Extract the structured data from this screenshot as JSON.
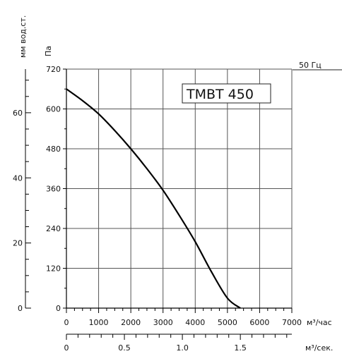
{
  "chart_data": {
    "type": "line",
    "model_label": "ТМВТ 450",
    "frequency_label": "50 Гц",
    "axes": {
      "y_pa": {
        "label": "Па",
        "ticks": [
          0,
          120,
          240,
          360,
          480,
          600,
          720
        ],
        "range": [
          0,
          720
        ]
      },
      "y_mm": {
        "label": "мм вод.ст.",
        "ticks": [
          0,
          20,
          40,
          60
        ],
        "range": [
          0,
          73.4
        ]
      },
      "x_m3h": {
        "label": "м³/час",
        "ticks": [
          0,
          1000,
          2000,
          3000,
          4000,
          5000,
          6000,
          7000
        ],
        "range": [
          0,
          7000
        ]
      },
      "x_m3s": {
        "label": "м³/сек.",
        "ticks": [
          0,
          0.5,
          1.0,
          1.5
        ],
        "tick_labels": [
          "0",
          "0.5",
          "1.0",
          "1.5"
        ],
        "range": [
          0,
          1.944
        ]
      }
    },
    "grid": true,
    "series": [
      {
        "x": [
          0,
          500,
          1000,
          1500,
          2000,
          2500,
          3000,
          3500,
          4000,
          4500,
          5000,
          5400
        ],
        "y": [
          660,
          625,
          585,
          535,
          480,
          420,
          355,
          280,
          200,
          110,
          30,
          0
        ]
      }
    ]
  },
  "colors": {
    "line": "#000000",
    "grid": "#555555",
    "background": "#ffffff"
  }
}
